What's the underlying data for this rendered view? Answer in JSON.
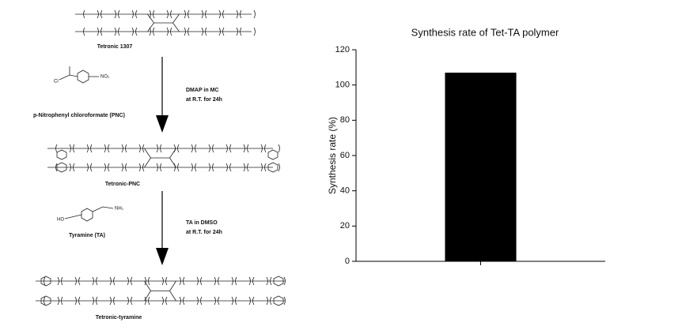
{
  "scheme": {
    "start": "Tetronic 1307",
    "reagent1": "p-Nitrophenyl chloroformate (PNC)",
    "reagent1_atoms": [
      "Cl",
      "NO₂"
    ],
    "step1": [
      "DMAP in MC",
      "at R.T. for 24h"
    ],
    "intermediate": "Tetronic-PNC",
    "reagent2": "Tyramine (TA)",
    "reagent2_atoms": [
      "HO",
      "NH₂"
    ],
    "step2": [
      "TA in DMSO",
      "at R.T. for 24h"
    ],
    "product": "Tetronic-tyramine"
  },
  "chart_data": {
    "type": "bar",
    "title": "Synthesis rate of Tet-TA polymer",
    "y_label": "Synthesis rate (%)",
    "categories": [
      null
    ],
    "values": [
      107
    ],
    "color": "#000000",
    "ylim": [
      0,
      120
    ],
    "yticks": [
      0,
      20,
      40,
      60,
      80,
      100,
      120
    ],
    "grid": false
  }
}
